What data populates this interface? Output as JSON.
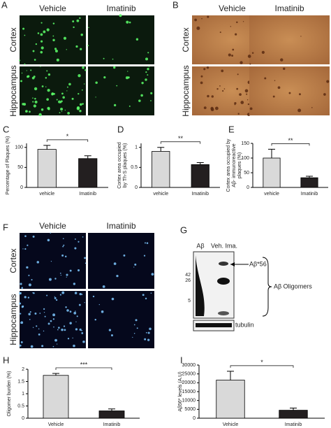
{
  "panel_labels": [
    "A",
    "B",
    "C",
    "D",
    "E",
    "F",
    "G",
    "H",
    "I"
  ],
  "panel_a": {
    "columns": [
      "Vehicle",
      "Imatinib"
    ],
    "rows": [
      "Cortex",
      "Hippocampus"
    ]
  },
  "panel_b": {
    "columns": [
      "Vehicle",
      "Imatinib"
    ],
    "rows": [
      "Cortex",
      "Hippocampus"
    ]
  },
  "panel_f": {
    "columns": [
      "Vehicle",
      "Imatinib"
    ],
    "rows": [
      "Cortex",
      "Hippocampus"
    ]
  },
  "panel_g": {
    "lane_labels": [
      "Aβ",
      "Veh. Ima."
    ],
    "markers": [
      "42",
      "26",
      "5"
    ],
    "band_label": "Aβ*56",
    "bracket_label": "Aβ Oligomers",
    "loading_label": "tubulin"
  },
  "chart_data": [
    {
      "type": "bar",
      "ylabel": [
        "Percentage of Plaques (%)"
      ],
      "categories": [
        "vehicle",
        "Imatinib"
      ],
      "values": [
        95,
        72
      ],
      "errors": [
        10,
        7
      ],
      "colors": [
        "#d9d9d9",
        "#231f20"
      ],
      "ylim": [
        0,
        110
      ],
      "yticks": [
        0,
        50,
        100
      ],
      "significance": "*"
    },
    {
      "type": "bar",
      "ylabel": [
        "Cortex area occupied",
        "by Th-S plaques (%)"
      ],
      "categories": [
        "vehicle",
        "Imatinib"
      ],
      "values": [
        0.9,
        0.57
      ],
      "errors": [
        0.1,
        0.05
      ],
      "colors": [
        "#d9d9d9",
        "#231f20"
      ],
      "ylim": [
        0,
        1.1
      ],
      "yticks": [
        0,
        0.5,
        1
      ],
      "significance": "**"
    },
    {
      "type": "bar",
      "ylabel": [
        "Cortex area occupied by",
        "Aβ- immunoreactive",
        "plaques (%)"
      ],
      "categories": [
        "vehicle",
        "Imatinib"
      ],
      "values": [
        100,
        33
      ],
      "errors": [
        30,
        5
      ],
      "colors": [
        "#d9d9d9",
        "#231f20"
      ],
      "ylim": [
        0,
        150
      ],
      "yticks": [
        0,
        50,
        100,
        150
      ],
      "significance": "**"
    },
    {
      "type": "bar",
      "ylabel": [
        "Oligomer burden (%)"
      ],
      "categories": [
        "Vehicle",
        "Imatinib"
      ],
      "values": [
        1.75,
        0.3
      ],
      "errors": [
        0.08,
        0.08
      ],
      "colors": [
        "#d9d9d9",
        "#231f20"
      ],
      "ylim": [
        0,
        2
      ],
      "yticks": [
        0,
        0.5,
        1,
        1.5,
        2
      ],
      "significance": "***"
    },
    {
      "type": "bar",
      "ylabel": [
        "Aβ56* levels (A.U)"
      ],
      "categories": [
        "Vehicle",
        "Imatinib"
      ],
      "values": [
        21500,
        4500
      ],
      "errors": [
        5000,
        1200
      ],
      "colors": [
        "#d9d9d9",
        "#231f20"
      ],
      "ylim": [
        0,
        30000
      ],
      "yticks": [
        0,
        5000,
        10000,
        15000,
        20000,
        25000,
        30000
      ],
      "significance": "*"
    }
  ]
}
